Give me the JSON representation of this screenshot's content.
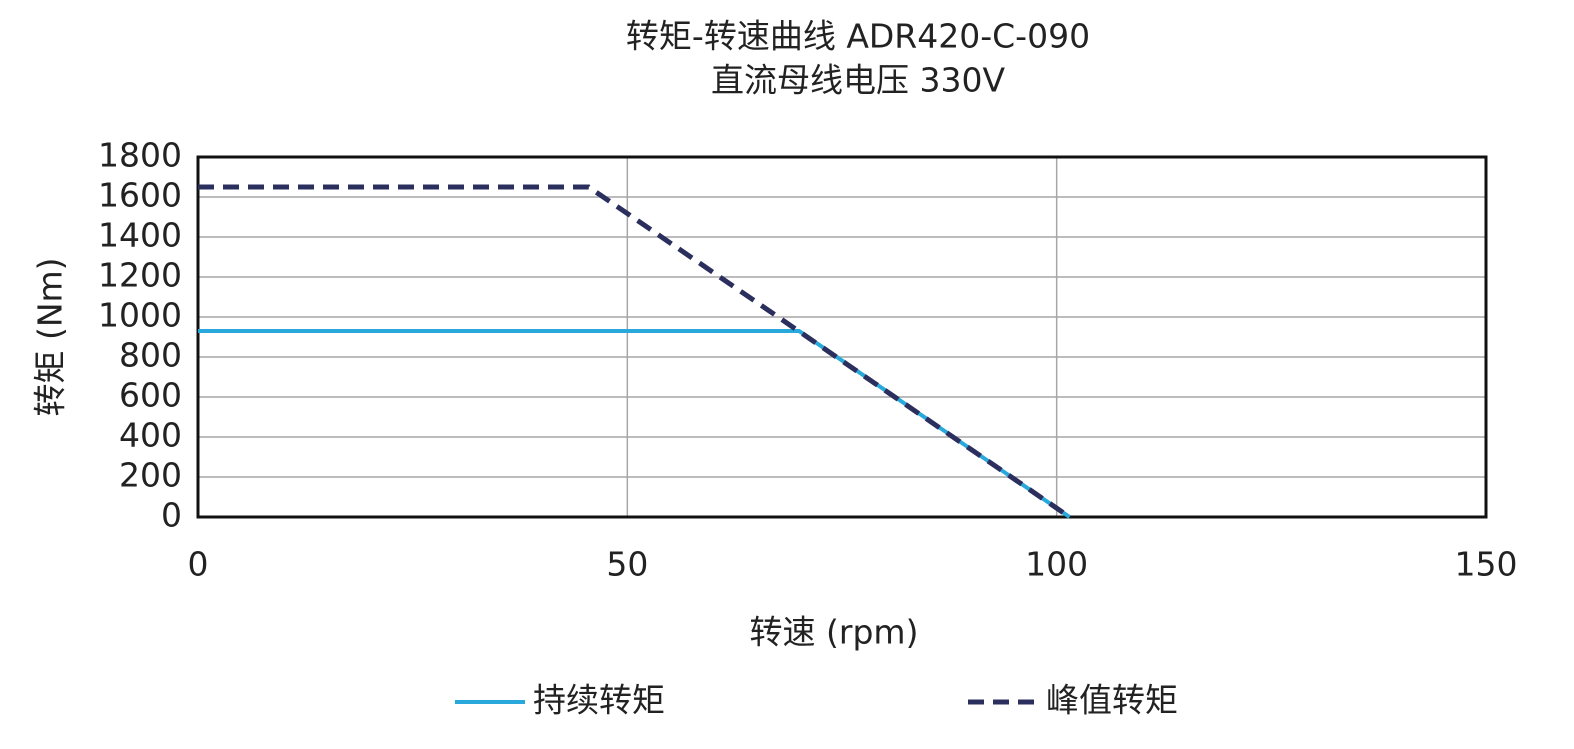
{
  "chart_data": {
    "type": "line",
    "title": "转矩-转速曲线 ADR420-C-090",
    "subtitle": "直流母线电压 330V",
    "x_label": "转速 (rpm)",
    "y_label": "转矩 (Nm)",
    "xlim": [
      0,
      150
    ],
    "xticks": [
      0,
      50,
      100,
      150
    ],
    "ylim": [
      0,
      1800
    ],
    "yticks": [
      0,
      200,
      400,
      600,
      800,
      1000,
      1200,
      1400,
      1600,
      1800
    ],
    "grid": true,
    "legend": "bottom",
    "series": [
      {
        "name": "持续转矩",
        "color": "#29a8dc",
        "dash": false,
        "x": [
          0,
          70,
          101.5
        ],
        "values": [
          930,
          930,
          0
        ]
      },
      {
        "name": "峰值转矩",
        "color": "#2b2f5e",
        "dash": true,
        "x": [
          0,
          45.5,
          101.5
        ],
        "values": [
          1650,
          1650,
          0
        ]
      }
    ]
  }
}
